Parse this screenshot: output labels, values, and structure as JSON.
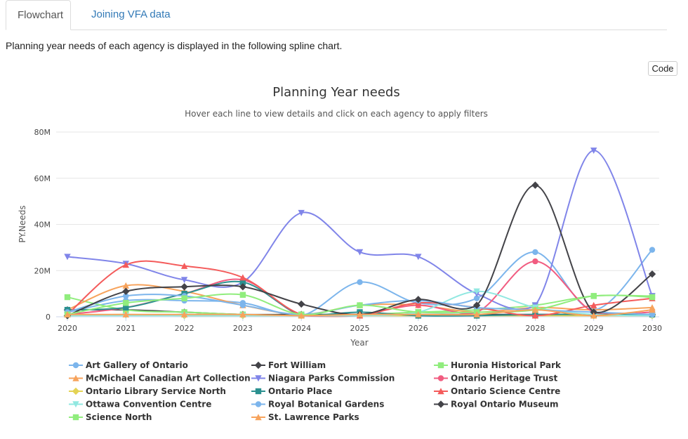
{
  "tabs": [
    {
      "label": "Flowchart",
      "active": true
    },
    {
      "label": "Joining VFA data",
      "active": false
    }
  ],
  "intro_text": "Planning year needs of each agency is displayed in the following spline chart.",
  "code_button": "Code",
  "chart_data": {
    "type": "line",
    "smoothing": "spline",
    "title": "Planning Year needs",
    "subtitle": "Hover each line to view details and click on each agency to apply filters",
    "xlabel": "Year",
    "ylabel": "PY.Needs",
    "x": [
      "2020",
      "2021",
      "2022",
      "2023",
      "2024",
      "2025",
      "2026",
      "2027",
      "2028",
      "2029",
      "2030"
    ],
    "ylim": [
      0,
      80000000
    ],
    "yticks": [
      {
        "value": 0,
        "label": "0"
      },
      {
        "value": 20000000,
        "label": "20M"
      },
      {
        "value": 40000000,
        "label": "40M"
      },
      {
        "value": 60000000,
        "label": "60M"
      },
      {
        "value": 80000000,
        "label": "80M"
      }
    ],
    "grid": true,
    "legend_position": "bottom",
    "series": [
      {
        "name": "Art Gallery of Ontario",
        "color": "#7cb5ec",
        "marker": "circle",
        "values": [
          2000000,
          7000000,
          7000000,
          6000000,
          500000,
          15000000,
          6000000,
          8000000,
          28000000,
          3000000,
          29000000
        ]
      },
      {
        "name": "Fort William",
        "color": "#434348",
        "marker": "diamond",
        "values": [
          3000000,
          3000000,
          2000000,
          1000000,
          1000000,
          1000000,
          1000000,
          1000000,
          1000000,
          1000000,
          1000000
        ]
      },
      {
        "name": "Huronia Historical Park",
        "color": "#90ed7d",
        "marker": "square",
        "values": [
          8500000,
          3000000,
          2000000,
          1000000,
          500000,
          1000000,
          2000000,
          3000000,
          5000000,
          9000000,
          9000000
        ]
      },
      {
        "name": "McMichael Canadian Art Collection",
        "color": "#f7a35c",
        "marker": "triangle",
        "values": [
          3000000,
          13500000,
          11000000,
          5000000,
          1000000,
          5000000,
          5000000,
          2000000,
          4000000,
          3000000,
          4000000
        ]
      },
      {
        "name": "Niagara Parks Commission",
        "color": "#8085e9",
        "marker": "triangle-down",
        "values": [
          26000000,
          23000000,
          16000000,
          15000000,
          45000000,
          28000000,
          26000000,
          10000000,
          5000000,
          72000000,
          9000000
        ]
      },
      {
        "name": "Ontario Heritage Trust",
        "color": "#f15c80",
        "marker": "circle",
        "values": [
          1000000,
          4000000,
          10000000,
          16000000,
          500000,
          1000000,
          5000000,
          2000000,
          24000000,
          2000000,
          2000000
        ]
      },
      {
        "name": "Ontario Library Service North",
        "color": "#e4d354",
        "marker": "diamond",
        "values": [
          500000,
          1000000,
          500000,
          500000,
          500000,
          500000,
          500000,
          500000,
          500000,
          500000,
          500000
        ]
      },
      {
        "name": "Ontario Place",
        "color": "#2b908f",
        "marker": "square",
        "values": [
          3000000,
          4000000,
          10000000,
          15000000,
          1000000,
          2000000,
          500000,
          500000,
          1000000,
          1000000,
          1000000
        ]
      },
      {
        "name": "Ontario Science Centre",
        "color": "#f45b5b",
        "marker": "triangle",
        "values": [
          1000000,
          22500000,
          22000000,
          17000000,
          1000000,
          500000,
          6000000,
          4000000,
          500000,
          5000000,
          8000000
        ]
      },
      {
        "name": "Ottawa Convention Centre",
        "color": "#91e8e1",
        "marker": "triangle-down",
        "values": [
          500000,
          500000,
          500000,
          500000,
          500000,
          500000,
          2000000,
          11000000,
          4000000,
          1000000,
          500000
        ]
      },
      {
        "name": "Royal Botanical Gardens",
        "color": "#7cb5ec",
        "marker": "circle",
        "values": [
          2000000,
          9000000,
          9000000,
          5000000,
          1000000,
          5000000,
          7000000,
          4000000,
          3000000,
          2000000,
          1000000
        ]
      },
      {
        "name": "Royal Ontario Museum",
        "color": "#434348",
        "marker": "diamond",
        "values": [
          500000,
          11000000,
          13000000,
          13000000,
          5500000,
          1000000,
          7500000,
          5000000,
          57000000,
          2000000,
          18500000
        ]
      },
      {
        "name": "Science North",
        "color": "#90ed7d",
        "marker": "square",
        "values": [
          1000000,
          6000000,
          8000000,
          9500000,
          1000000,
          5000000,
          2000000,
          2000000,
          3000000,
          9000000,
          8500000
        ]
      },
      {
        "name": "St. Lawrence Parks",
        "color": "#f7a35c",
        "marker": "triangle",
        "values": [
          1000000,
          1000000,
          1000000,
          1000000,
          500000,
          1000000,
          1000000,
          1000000,
          3000000,
          500000,
          3000000
        ]
      }
    ]
  }
}
